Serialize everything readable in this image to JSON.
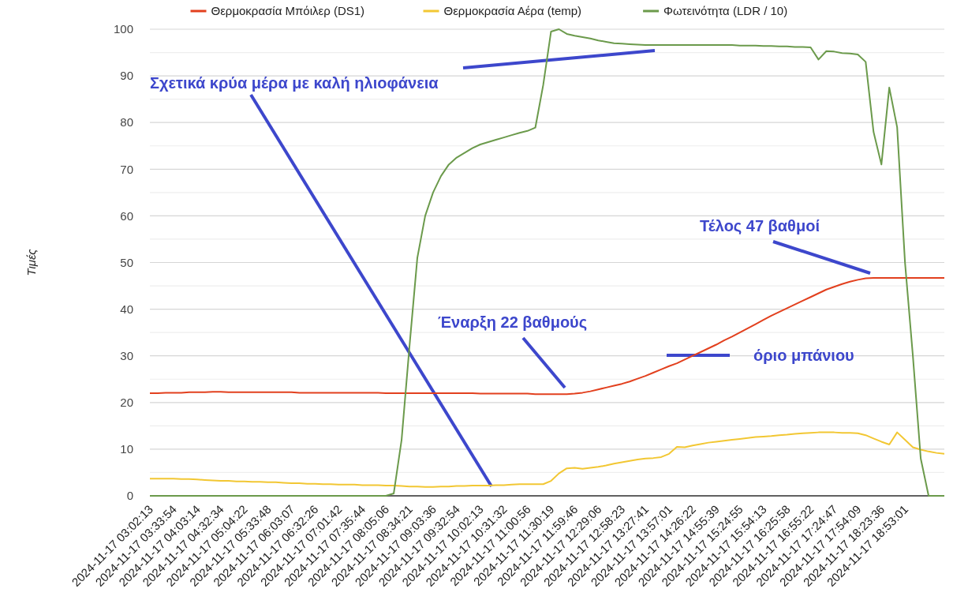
{
  "chart_data": {
    "type": "line",
    "ylabel": "Τιμές",
    "legend": "top",
    "grid": true,
    "categories": [
      "2024-11-17 03:02:13",
      null,
      null,
      "2024-11-17 03:33:54",
      null,
      null,
      "2024-11-17 04:03:14",
      null,
      null,
      "2024-11-17 04:32:34",
      null,
      null,
      "2024-11-17 05:04:22",
      null,
      null,
      "2024-11-17 05:33:48",
      null,
      null,
      "2024-11-17 06:03:07",
      null,
      null,
      "2024-11-17 06:32:26",
      null,
      null,
      "2024-11-17 07:01:42",
      null,
      null,
      "2024-11-17 07:35:44",
      null,
      null,
      "2024-11-17 08:05:06",
      null,
      null,
      "2024-11-17 08:34:21",
      null,
      null,
      "2024-11-17 09:03:36",
      null,
      null,
      "2024-11-17 09:32:54",
      null,
      null,
      "2024-11-17 10:02:13",
      null,
      null,
      "2024-11-17 10:31:32",
      null,
      null,
      "2024-11-17 11:00:56",
      null,
      null,
      "2024-11-17 11:30:19",
      null,
      null,
      "2024-11-17 11:59:46",
      null,
      null,
      "2024-11-17 12:29:06",
      null,
      null,
      "2024-11-17 12:58:23",
      null,
      null,
      "2024-11-17 13:27:41",
      null,
      null,
      "2024-11-17 13:57:01",
      null,
      null,
      "2024-11-17 14:26:22",
      null,
      null,
      "2024-11-17 14:55:39",
      null,
      null,
      "2024-11-17 15:24:55",
      null,
      null,
      "2024-11-17 15:54:13",
      null,
      null,
      "2024-11-17 16:25:58",
      null,
      null,
      "2024-11-17 16:55:22",
      null,
      null,
      "2024-11-17 17:24:47",
      null,
      null,
      "2024-11-17 17:54:09",
      null,
      null,
      "2024-11-17 18:23:36",
      null,
      null,
      "2024-11-17 18:53:01",
      null,
      null,
      null,
      null,
      null
    ],
    "ylim": [
      0,
      100
    ],
    "yticks": [
      0,
      {
        "value": 5,
        "label": null
      },
      10,
      {
        "value": 15,
        "label": null
      },
      20,
      {
        "value": 25,
        "label": null
      },
      30,
      {
        "value": 35,
        "label": null
      },
      40,
      {
        "value": 45,
        "label": null
      },
      50,
      {
        "value": 55,
        "label": null
      },
      60,
      {
        "value": 65,
        "label": null
      },
      70,
      {
        "value": 75,
        "label": null
      },
      80,
      {
        "value": 85,
        "label": null
      },
      90,
      {
        "value": 95,
        "label": null
      },
      100
    ],
    "series": [
      {
        "name": "Θερμοκρασία Μπόιλερ (DS1)",
        "color": "#e2401e",
        "values": [
          22.0,
          22.0,
          22.1,
          22.1,
          22.1,
          22.2,
          22.2,
          22.2,
          22.3,
          22.3,
          22.2,
          22.2,
          22.2,
          22.2,
          22.2,
          22.2,
          22.2,
          22.2,
          22.2,
          22.1,
          22.1,
          22.1,
          22.1,
          22.1,
          22.1,
          22.1,
          22.1,
          22.1,
          22.1,
          22.1,
          22.0,
          22.0,
          22.0,
          22.0,
          22.0,
          22.0,
          22.0,
          22.0,
          22.0,
          22.0,
          22.0,
          22.0,
          21.9,
          21.9,
          21.9,
          21.9,
          21.9,
          21.9,
          21.9,
          21.8,
          21.8,
          21.8,
          21.8,
          21.8,
          21.9,
          22.1,
          22.4,
          22.8,
          23.2,
          23.6,
          24.0,
          24.5,
          25.1,
          25.7,
          26.4,
          27.1,
          27.8,
          28.4,
          29.2,
          30.0,
          30.8,
          31.6,
          32.4,
          33.3,
          34.1,
          35.0,
          35.9,
          36.8,
          37.7,
          38.6,
          39.4,
          40.2,
          41.0,
          41.8,
          42.6,
          43.4,
          44.2,
          44.8,
          45.4,
          45.9,
          46.3,
          46.6,
          46.7,
          46.7,
          46.7,
          46.7,
          46.7,
          46.7,
          46.7,
          46.7,
          46.7,
          46.7
        ]
      },
      {
        "name": "Θερμοκρασία Αέρα (temp)",
        "color": "#f2c733",
        "values": [
          3.7,
          3.7,
          3.7,
          3.7,
          3.6,
          3.6,
          3.5,
          3.4,
          3.3,
          3.2,
          3.2,
          3.1,
          3.1,
          3.0,
          3.0,
          2.9,
          2.9,
          2.8,
          2.7,
          2.7,
          2.6,
          2.6,
          2.5,
          2.5,
          2.4,
          2.4,
          2.4,
          2.3,
          2.3,
          2.3,
          2.2,
          2.2,
          2.1,
          2.0,
          2.0,
          1.9,
          1.9,
          2.0,
          2.0,
          2.1,
          2.1,
          2.2,
          2.2,
          2.2,
          2.3,
          2.3,
          2.4,
          2.5,
          2.5,
          2.5,
          2.5,
          3.2,
          4.8,
          5.9,
          6.0,
          5.8,
          6.0,
          6.2,
          6.5,
          6.9,
          7.2,
          7.5,
          7.8,
          8.0,
          8.1,
          8.3,
          9.0,
          10.5,
          10.4,
          10.8,
          11.1,
          11.4,
          11.6,
          11.8,
          12.0,
          12.2,
          12.4,
          12.6,
          12.7,
          12.8,
          13.0,
          13.1,
          13.3,
          13.4,
          13.5,
          13.6,
          13.6,
          13.6,
          13.5,
          13.5,
          13.4,
          13.0,
          12.3,
          11.6,
          11.0,
          13.6,
          12.0,
          10.4,
          9.9,
          9.5,
          9.2,
          9.0
        ]
      },
      {
        "name": "Φωτεινότητα (LDR / 10)",
        "color": "#6b9a4b",
        "values": [
          0,
          0,
          0,
          0,
          0,
          0,
          0,
          0,
          0,
          0,
          0,
          0,
          0,
          0,
          0,
          0,
          0,
          0,
          0,
          0,
          0,
          0,
          0,
          0,
          0,
          0,
          0,
          0,
          0,
          0,
          0,
          0.5,
          12,
          32,
          51,
          60,
          65,
          68.5,
          71,
          72.5,
          73.5,
          74.5,
          75.3,
          75.8,
          76.3,
          76.8,
          77.3,
          77.8,
          78.2,
          78.9,
          88,
          99.5,
          100,
          99.0,
          98.6,
          98.3,
          98.0,
          97.6,
          97.3,
          97.0,
          96.9,
          96.8,
          96.7,
          96.6,
          96.6,
          96.6,
          96.6,
          96.6,
          96.6,
          96.6,
          96.6,
          96.6,
          96.6,
          96.6,
          96.6,
          96.5,
          96.5,
          96.5,
          96.4,
          96.4,
          96.3,
          96.3,
          96.2,
          96.2,
          96.1,
          93.5,
          95.3,
          95.2,
          94.9,
          94.8,
          94.6,
          93.0,
          78,
          71,
          87.5,
          79,
          50,
          30,
          8,
          0,
          0,
          0
        ]
      }
    ],
    "annotations": [
      "Σχετικά κρύα μέρα με καλή ηλιοφάνεια",
      "Έναρξη 22 βαθμούς",
      "Τέλος 47 βαθμοί",
      "όριο μπάνιου"
    ]
  }
}
